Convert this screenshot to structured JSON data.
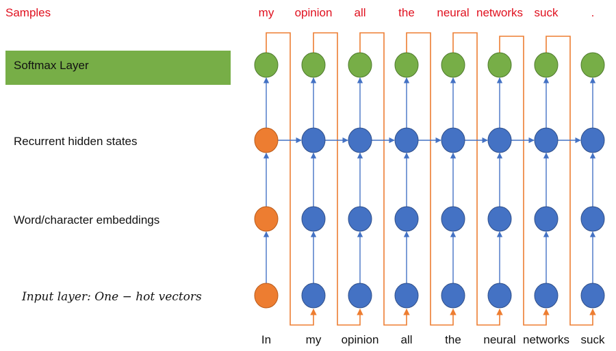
{
  "labels": {
    "samples": "Samples",
    "softmax_layer": "Softmax Layer",
    "recurrent_hidden_states": "Recurrent hidden states",
    "embeddings": "Word/character embeddings",
    "input_layer": "Input layer: One − hot vectors"
  },
  "sample_words": [
    "my",
    "opinion",
    "all",
    "the",
    "neural",
    "networks",
    "suck",
    "."
  ],
  "input_words": [
    "In",
    "my",
    "opinion",
    "all",
    "the",
    "neural",
    "networks",
    "suck"
  ],
  "colors": {
    "green_node": "#77ae47",
    "blue_node": "#4472c4",
    "orange_node": "#ed7d31",
    "node_stroke": "#2f4f8a",
    "blue_arrow": "#4472c4",
    "orange_line": "#ed7d31",
    "sample_text": "#e0101e",
    "softmax_band": "#77ae47"
  }
}
